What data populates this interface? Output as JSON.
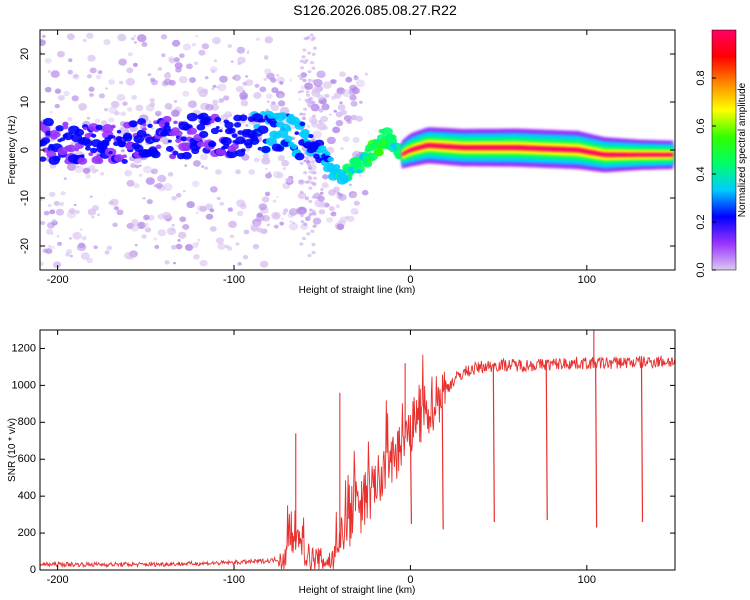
{
  "title": "S126.2026.085.08.27.R22",
  "chart_data": [
    {
      "type": "heatmap",
      "xlabel": "Height of straight line (km)",
      "ylabel": "Frequency (Hz)",
      "xlim": [
        -210,
        150
      ],
      "ylim": [
        -25,
        25
      ],
      "xticks": [
        "-200",
        "-100",
        "0",
        "100"
      ],
      "xtick_values": [
        -200,
        -100,
        0,
        100
      ],
      "yticks": [
        "-20",
        "-10",
        "0",
        "10",
        "20"
      ],
      "ytick_values": [
        -20,
        -10,
        0,
        10,
        20
      ],
      "colorbar": {
        "label": "Normalized spectral amplitude",
        "range": [
          0,
          1
        ],
        "ticks": [
          "0.0",
          "0.2",
          "0.4",
          "0.6",
          "0.8"
        ],
        "tick_values": [
          0,
          0.2,
          0.4,
          0.6,
          0.8
        ],
        "colors": [
          "#dcc8f0",
          "#9933ff",
          "#0000ff",
          "#00ccff",
          "#00ff66",
          "#33ff00",
          "#ffff00",
          "#ff8800",
          "#ff0000",
          "#ff0066"
        ]
      },
      "ridge": {
        "x": [
          -210,
          -180,
          -150,
          -120,
          -100,
          -85,
          -75,
          -65,
          -55,
          -45,
          -40,
          -30,
          -20,
          -15,
          -10,
          -5,
          0,
          10,
          30,
          60,
          95,
          110,
          130,
          150
        ],
        "y": [
          2,
          1,
          2,
          3,
          3,
          4,
          4,
          3,
          1,
          -3,
          -6,
          -3,
          0,
          3,
          1,
          -1,
          0,
          1,
          0.5,
          0.5,
          0,
          -1,
          -1,
          -1
        ],
        "amplitude": [
          0.1,
          0.12,
          0.12,
          0.12,
          0.15,
          0.2,
          0.25,
          0.25,
          0.2,
          0.25,
          0.3,
          0.35,
          0.4,
          0.45,
          0.35,
          0.4,
          0.7,
          0.85,
          0.9,
          0.95,
          0.95,
          0.8,
          0.55,
          0.45
        ]
      }
    },
    {
      "type": "line",
      "xlabel": "Height of straight line (km)",
      "ylabel": "SNR (10 * v/v)",
      "xlim": [
        -210,
        150
      ],
      "ylim": [
        0,
        1300
      ],
      "xticks": [
        "-200",
        "-100",
        "0",
        "100"
      ],
      "xtick_values": [
        -200,
        -100,
        0,
        100
      ],
      "yticks": [
        "0",
        "200",
        "400",
        "600",
        "800",
        "1000",
        "1200"
      ],
      "ytick_values": [
        0,
        200,
        400,
        600,
        800,
        1000,
        1200
      ],
      "color": "#e8302e",
      "series": [
        {
          "name": "SNR",
          "x": [
            -210,
            -180,
            -150,
            -120,
            -100,
            -80,
            -70,
            -66,
            -64,
            -60,
            -55,
            -50,
            -45,
            -40,
            -35,
            -30,
            -25,
            -20,
            -15,
            -10,
            -5,
            0,
            5,
            10,
            15,
            20,
            25,
            30,
            40,
            50,
            60,
            70,
            80,
            90,
            100,
            110,
            120,
            130,
            140,
            150
          ],
          "y": [
            30,
            30,
            30,
            35,
            40,
            50,
            70,
            170,
            160,
            90,
            60,
            50,
            50,
            120,
            220,
            300,
            380,
            450,
            520,
            600,
            680,
            760,
            820,
            880,
            930,
            980,
            1030,
            1070,
            1100,
            1110,
            1110,
            1110,
            1115,
            1120,
            1120,
            1120,
            1125,
            1125,
            1130,
            1130
          ]
        }
      ],
      "dropouts": [
        {
          "x": 0,
          "y": 250
        },
        {
          "x": 18,
          "y": 220
        },
        {
          "x": 47,
          "y": 260
        },
        {
          "x": 77,
          "y": 270
        },
        {
          "x": 105,
          "y": 230
        },
        {
          "x": 131,
          "y": 260
        }
      ],
      "spikes": [
        {
          "x": -65,
          "y": 740
        },
        {
          "x": -40,
          "y": 960
        },
        {
          "x": -3,
          "y": 1120
        },
        {
          "x": 104,
          "y": 1300
        }
      ]
    }
  ]
}
